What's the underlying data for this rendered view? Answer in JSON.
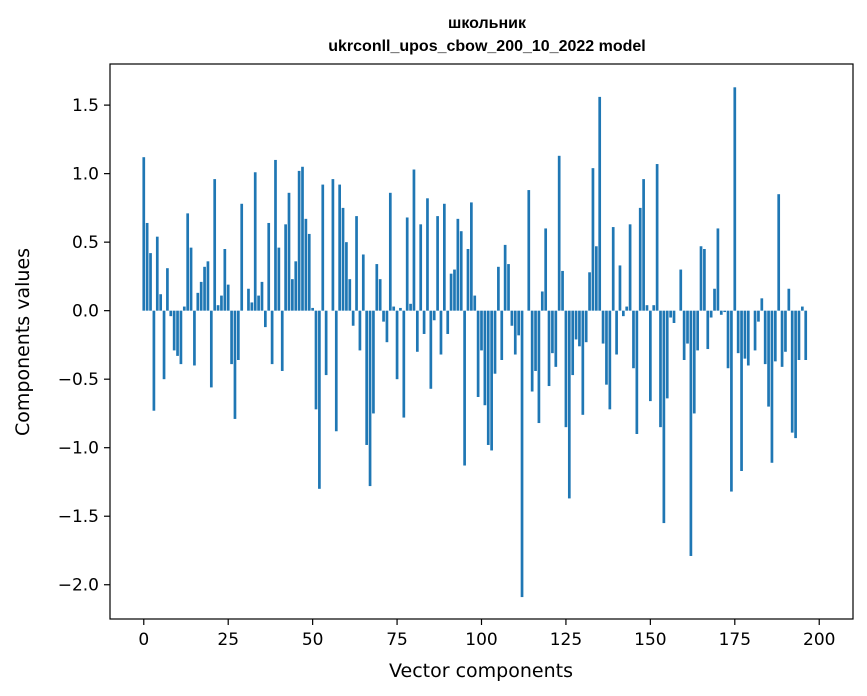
{
  "chart_data": {
    "type": "bar",
    "title": "школьник",
    "subtitle": "ukrconll_upos_cbow_200_10_2022 model",
    "xlabel": "Vector components",
    "ylabel": "Components values",
    "xlim": [
      -10,
      210
    ],
    "ylim": [
      -2.25,
      1.8
    ],
    "xticks": [
      0,
      25,
      50,
      75,
      100,
      125,
      150,
      175,
      200
    ],
    "yticks": [
      -2.0,
      -1.5,
      -1.0,
      -0.5,
      0.0,
      0.5,
      1.0,
      1.5
    ],
    "xtick_labels": [
      "0",
      "25",
      "50",
      "75",
      "100",
      "125",
      "150",
      "175",
      "200"
    ],
    "ytick_labels": [
      "−2.0",
      "−1.5",
      "−1.0",
      "−0.5",
      "0.0",
      "0.5",
      "1.0",
      "1.5"
    ],
    "color": "#1f77b4",
    "values": [
      1.12,
      0.64,
      0.42,
      -0.73,
      0.54,
      0.12,
      -0.5,
      0.31,
      -0.04,
      -0.29,
      -0.33,
      -0.39,
      0.03,
      0.71,
      0.46,
      -0.4,
      0.13,
      0.21,
      0.32,
      0.36,
      -0.56,
      0.96,
      0.04,
      0.11,
      0.45,
      0.19,
      -0.39,
      -0.79,
      -0.36,
      0.78,
      0.0,
      0.16,
      0.06,
      1.01,
      0.11,
      0.21,
      -0.12,
      0.64,
      -0.39,
      1.1,
      0.46,
      -0.44,
      0.63,
      0.86,
      0.23,
      0.36,
      1.02,
      1.05,
      0.67,
      0.56,
      0.02,
      -0.72,
      -1.3,
      0.92,
      -0.47,
      0.0,
      0.96,
      -0.88,
      0.92,
      0.75,
      0.5,
      0.23,
      -0.11,
      0.69,
      -0.29,
      0.41,
      -0.98,
      -1.28,
      -0.75,
      0.34,
      0.23,
      -0.08,
      -0.23,
      0.86,
      0.03,
      -0.5,
      0.02,
      -0.78,
      0.68,
      0.05,
      1.03,
      -0.3,
      0.63,
      -0.17,
      0.82,
      -0.57,
      -0.07,
      0.69,
      -0.32,
      0.78,
      -0.17,
      0.27,
      0.3,
      0.67,
      0.58,
      -1.13,
      0.45,
      0.79,
      0.11,
      -0.63,
      -0.29,
      -0.69,
      -0.98,
      -1.02,
      -0.46,
      0.32,
      -0.36,
      0.48,
      0.34,
      -0.11,
      -0.32,
      -0.18,
      -2.09,
      0.0,
      0.88,
      -0.59,
      -0.44,
      -0.82,
      0.14,
      0.6,
      -0.55,
      -0.31,
      -0.41,
      1.13,
      0.29,
      -0.85,
      -1.37,
      -0.47,
      -0.21,
      -0.26,
      -0.76,
      -0.23,
      0.28,
      1.04,
      0.47,
      1.56,
      -0.24,
      -0.54,
      -0.72,
      0.61,
      -0.32,
      0.33,
      -0.04,
      0.03,
      0.63,
      -0.42,
      -0.9,
      0.75,
      0.96,
      0.04,
      -0.66,
      0.04,
      1.07,
      -0.85,
      -1.55,
      -0.64,
      -0.05,
      -0.09,
      0.0,
      0.3,
      -0.36,
      -0.24,
      -1.79,
      -0.75,
      -0.29,
      0.47,
      0.45,
      -0.28,
      -0.05,
      0.16,
      0.6,
      -0.03,
      -0.01,
      -0.42,
      -1.32,
      1.63,
      -0.31,
      -1.17,
      -0.35,
      -0.4,
      0.0,
      -0.29,
      -0.08,
      0.09,
      -0.39,
      -0.7,
      -1.11,
      -0.37,
      0.85,
      -0.41,
      -0.3,
      0.16,
      -0.89,
      -0.93,
      -0.36,
      0.03,
      -0.36
    ]
  }
}
